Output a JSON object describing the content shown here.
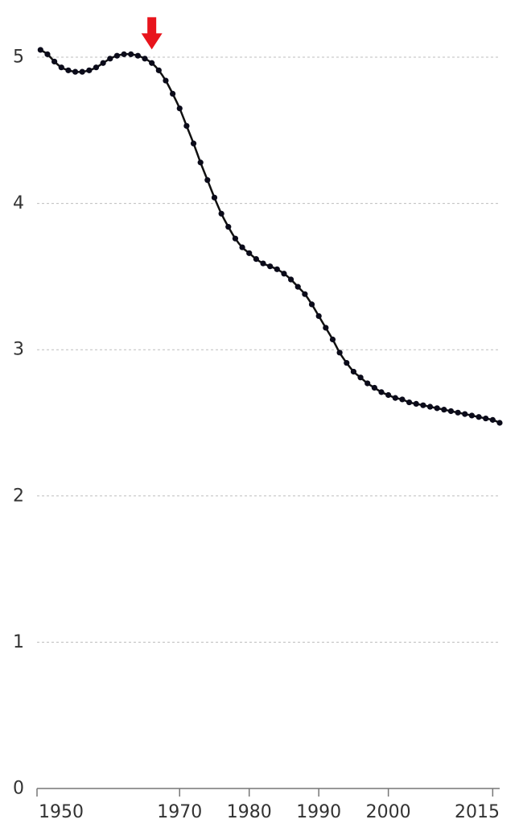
{
  "chart_data": {
    "type": "line",
    "title": "",
    "xlabel": "",
    "ylabel": "",
    "xlim": [
      1949.5,
      2016
    ],
    "ylim": [
      0,
      5
    ],
    "grid": true,
    "x_ticks": [
      {
        "value": 1950,
        "label": "1950"
      },
      {
        "value": 1970,
        "label": "1970"
      },
      {
        "value": 1980,
        "label": "1980"
      },
      {
        "value": 1990,
        "label": "1990"
      },
      {
        "value": 2000,
        "label": "2000"
      },
      {
        "value": 2015,
        "label": "2015"
      }
    ],
    "y_ticks": [
      {
        "value": 0,
        "label": "0"
      },
      {
        "value": 1,
        "label": "1"
      },
      {
        "value": 2,
        "label": "2"
      },
      {
        "value": 3,
        "label": "3"
      },
      {
        "value": 4,
        "label": "4"
      },
      {
        "value": 5,
        "label": "5"
      }
    ],
    "series": [
      {
        "color": "#111111",
        "x": [
          1950,
          1951,
          1952,
          1953,
          1954,
          1955,
          1956,
          1957,
          1958,
          1959,
          1960,
          1961,
          1962,
          1963,
          1964,
          1965,
          1966,
          1967,
          1968,
          1969,
          1970,
          1971,
          1972,
          1973,
          1974,
          1975,
          1976,
          1977,
          1978,
          1979,
          1980,
          1981,
          1982,
          1983,
          1984,
          1985,
          1986,
          1987,
          1988,
          1989,
          1990,
          1991,
          1992,
          1993,
          1994,
          1995,
          1996,
          1997,
          1998,
          1999,
          2000,
          2001,
          2002,
          2003,
          2004,
          2005,
          2006,
          2007,
          2008,
          2009,
          2010,
          2011,
          2012,
          2013,
          2014,
          2015,
          2016
        ],
        "y": [
          5.05,
          5.02,
          4.97,
          4.93,
          4.91,
          4.9,
          4.9,
          4.91,
          4.93,
          4.96,
          4.99,
          5.01,
          5.02,
          5.02,
          5.01,
          4.99,
          4.96,
          4.91,
          4.84,
          4.75,
          4.65,
          4.53,
          4.41,
          4.28,
          4.16,
          4.04,
          3.93,
          3.84,
          3.76,
          3.7,
          3.66,
          3.62,
          3.59,
          3.57,
          3.55,
          3.52,
          3.48,
          3.43,
          3.38,
          3.31,
          3.23,
          3.15,
          3.07,
          2.98,
          2.91,
          2.85,
          2.81,
          2.77,
          2.74,
          2.71,
          2.69,
          2.67,
          2.66,
          2.64,
          2.63,
          2.62,
          2.61,
          2.6,
          2.59,
          2.58,
          2.57,
          2.56,
          2.55,
          2.54,
          2.53,
          2.52,
          2.5
        ]
      }
    ],
    "annotations": [
      {
        "type": "arrow",
        "color": "#e8141c",
        "x": 1966,
        "y_tip": 5.02
      }
    ]
  }
}
